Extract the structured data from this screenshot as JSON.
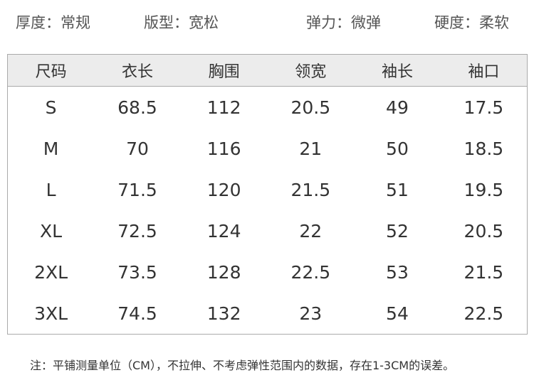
{
  "attributes": [
    {
      "label": "厚度：常规"
    },
    {
      "label": "版型：宽松"
    },
    {
      "label": "弹力：微弹"
    },
    {
      "label": "硬度：柔软"
    }
  ],
  "table": {
    "headers": [
      "尺码",
      "衣长",
      "胸围",
      "领宽",
      "袖长",
      "袖口"
    ],
    "rows": [
      [
        "S",
        "68.5",
        "112",
        "20.5",
        "49",
        "17.5"
      ],
      [
        "M",
        "70",
        "116",
        "21",
        "50",
        "18.5"
      ],
      [
        "L",
        "71.5",
        "120",
        "21.5",
        "51",
        "19.5"
      ],
      [
        "XL",
        "72.5",
        "124",
        "22",
        "52",
        "20.5"
      ],
      [
        "2XL",
        "73.5",
        "128",
        "22.5",
        "53",
        "21.5"
      ],
      [
        "3XL",
        "74.5",
        "132",
        "23",
        "54",
        "22.5"
      ]
    ]
  },
  "note": "注：平铺测量单位（CM），不拉伸、不考虑弹性范围内的数据，存在1-3CM的误差。"
}
